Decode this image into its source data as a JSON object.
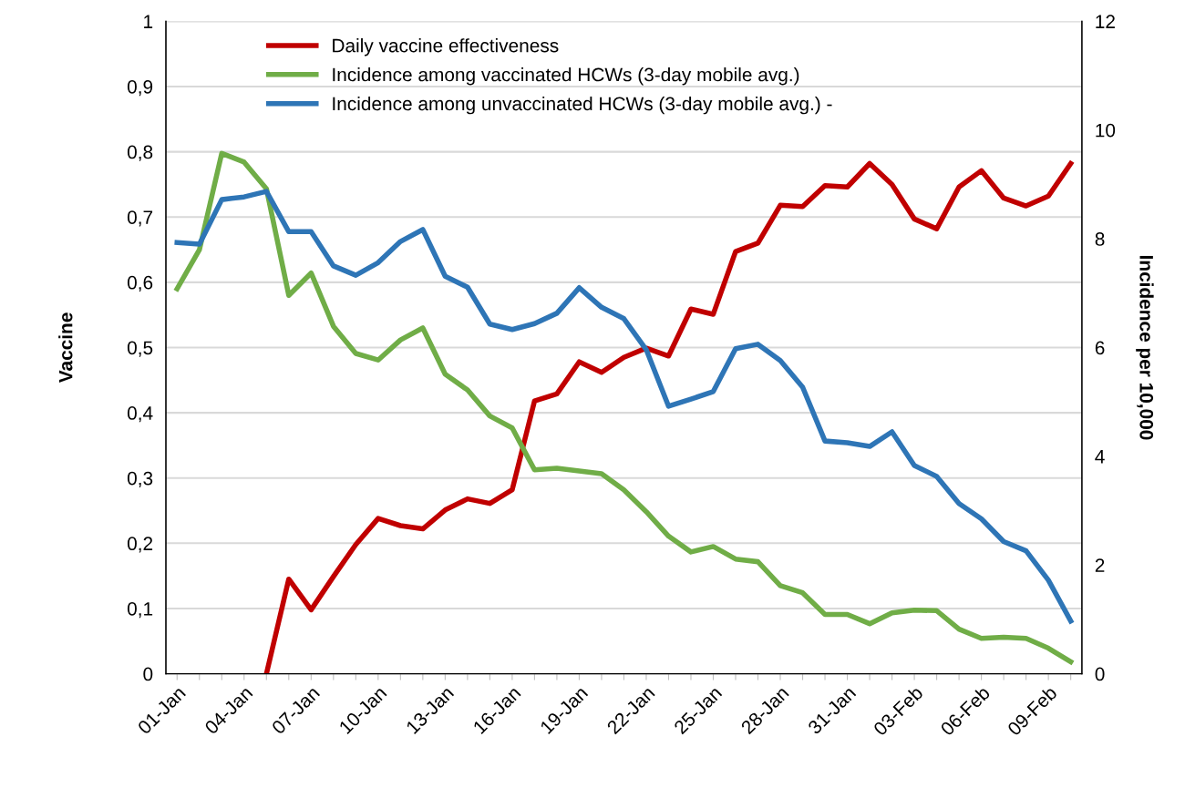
{
  "chart_data": {
    "type": "line",
    "ylabel": "Vaccine",
    "y2label": "Incidence per 10,000",
    "categories": [
      "01-Jan",
      null,
      null,
      "04-Jan",
      null,
      null,
      "07-Jan",
      null,
      null,
      "10-Jan",
      null,
      null,
      "13-Jan",
      null,
      null,
      "16-Jan",
      null,
      null,
      "19-Jan",
      null,
      null,
      "22-Jan",
      null,
      null,
      "25-Jan",
      null,
      null,
      "28-Jan",
      null,
      null,
      "31-Jan",
      null,
      null,
      "03-Feb",
      null,
      null,
      "06-Feb",
      null,
      null,
      "09-Feb",
      null
    ],
    "series": [
      {
        "name": "Daily vaccine effectiveness",
        "color": "#c00000",
        "values": [
          null,
          null,
          null,
          null,
          0,
          0.145,
          0.098,
          0.149,
          0.198,
          0.238,
          0.227,
          0.222,
          0.251,
          0.268,
          0.261,
          0.282,
          0.418,
          0.429,
          0.478,
          0.462,
          0.485,
          0.499,
          0.487,
          0.559,
          0.551,
          0.647,
          0.66,
          0.718,
          0.716,
          0.748,
          0.746,
          0.782,
          0.75,
          0.697,
          0.682,
          0.746,
          0.771,
          0.729,
          0.717,
          0.732,
          0.782
        ]
      },
      {
        "name": "Incidence among vaccinated HCWs (3-day mobile avg.)",
        "color": "#70ad47",
        "axis": "y2",
        "values": [
          7.08,
          7.8,
          9.57,
          9.41,
          8.92,
          6.96,
          7.37,
          6.39,
          5.89,
          5.77,
          6.14,
          6.36,
          5.51,
          5.22,
          4.74,
          4.52,
          3.75,
          3.78,
          3.73,
          3.68,
          3.38,
          2.98,
          2.53,
          2.24,
          2.34,
          2.11,
          2.06,
          1.62,
          1.49,
          1.09,
          1.09,
          0.92,
          1.12,
          1.17,
          1.16,
          0.82,
          0.65,
          0.67,
          0.65,
          0.47,
          0.22
        ]
      },
      {
        "name": "Incidence among unvaccinated HCWs (3-day mobile avg.) -",
        "color": "#2e75b6",
        "axis": "y2",
        "values": [
          7.93,
          7.9,
          8.72,
          8.77,
          8.87,
          8.13,
          8.13,
          7.5,
          7.33,
          7.56,
          7.95,
          8.17,
          7.31,
          7.11,
          6.43,
          6.33,
          6.44,
          6.63,
          7.1,
          6.74,
          6.53,
          5.96,
          4.92,
          5.05,
          5.19,
          5.98,
          6.06,
          5.76,
          5.27,
          4.28,
          4.25,
          4.18,
          4.45,
          3.83,
          3.63,
          3.13,
          2.85,
          2.43,
          2.26,
          1.72,
          0.97
        ]
      }
    ],
    "ylim": [
      0,
      1
    ],
    "yticks": [
      0,
      {
        "value": 0.1,
        "label": "0,1"
      },
      {
        "value": 0.2,
        "label": "0,2"
      },
      {
        "value": 0.3,
        "label": "0,3"
      },
      {
        "value": 0.4,
        "label": "0,4"
      },
      {
        "value": 0.5,
        "label": "0,5"
      },
      {
        "value": 0.6,
        "label": "0,6"
      },
      {
        "value": 0.7,
        "label": "0,7"
      },
      {
        "value": 0.8,
        "label": "0,8"
      },
      {
        "value": 0.9,
        "label": "0,9"
      },
      1
    ],
    "y2lim": [
      0,
      12
    ],
    "y2ticks": [
      0,
      2,
      4,
      6,
      8,
      10,
      12
    ],
    "grid": "y",
    "legend": "top",
    "marker": "none",
    "line_style": "solid"
  }
}
